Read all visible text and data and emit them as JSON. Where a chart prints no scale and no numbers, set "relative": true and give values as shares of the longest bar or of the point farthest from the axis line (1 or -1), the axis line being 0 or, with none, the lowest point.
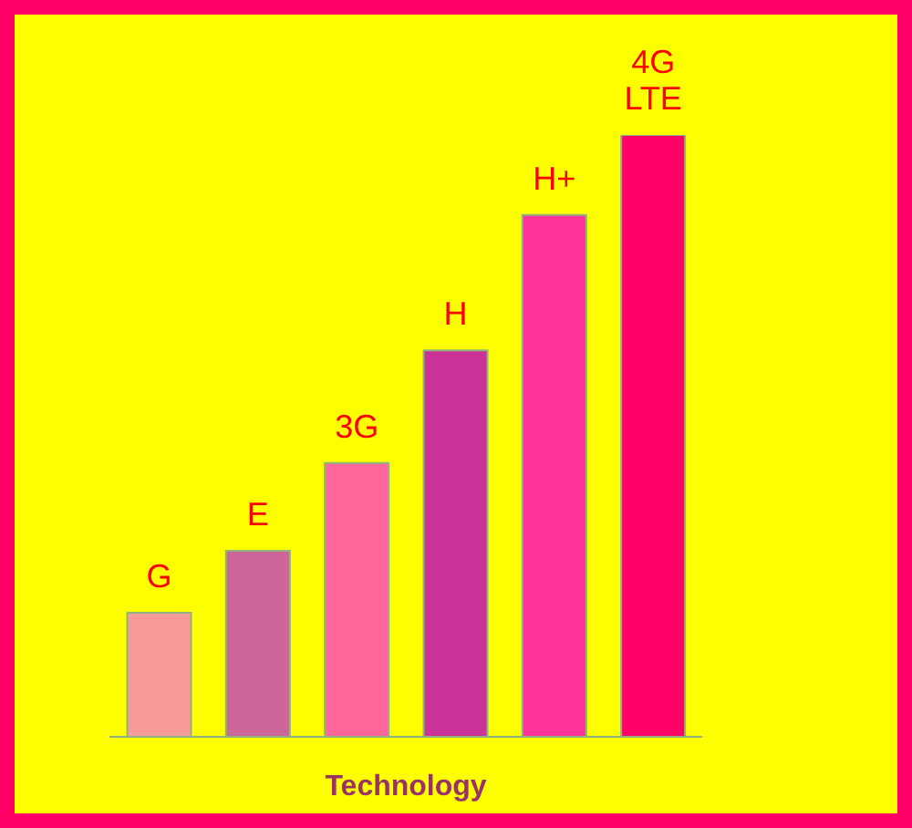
{
  "chart_data": {
    "type": "bar",
    "relative": true,
    "xlabel": "Technology",
    "categories": [
      "G",
      "E",
      "3G",
      "H",
      "H+",
      "4G LTE"
    ],
    "values": [
      0.206,
      0.309,
      0.455,
      0.642,
      0.867,
      1
    ],
    "colors": [
      "#f99a9a",
      "#cc6699",
      "#ff6699",
      "#cc3399",
      "#ff3399",
      "#ff0066"
    ]
  }
}
